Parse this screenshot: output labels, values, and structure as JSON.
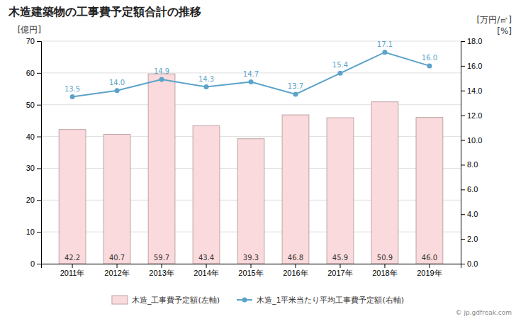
{
  "chart_data": {
    "type": "bar",
    "title": "木造建築物の工事費予定額合計の推移",
    "categories": [
      "2011年",
      "2012年",
      "2013年",
      "2014年",
      "2015年",
      "2016年",
      "2017年",
      "2018年",
      "2019年"
    ],
    "series": [
      {
        "name": "木造_工事費予定額(左軸)",
        "type": "bar",
        "color": "#FADADC",
        "values": [
          42.2,
          40.7,
          59.7,
          43.4,
          39.3,
          46.8,
          45.9,
          50.9,
          46.0
        ],
        "value_labels": [
          "42.2",
          "40.7",
          "59.7",
          "43.4",
          "39.3",
          "46.8",
          "45.9",
          "50.9",
          "46.0"
        ]
      },
      {
        "name": "木造_1平米当たり平均工事費予定額(右軸)",
        "type": "line",
        "color": "#5BA3C9",
        "marker": "circle",
        "axis": "y2",
        "values": [
          13.5,
          14.0,
          14.9,
          14.3,
          14.7,
          13.7,
          15.4,
          17.1,
          16.0
        ],
        "value_labels": [
          "13.5",
          "14.0",
          "14.9",
          "14.3",
          "14.7",
          "13.7",
          "15.4",
          "17.1",
          "16.0"
        ]
      }
    ],
    "ylabel": "[億円]",
    "y2label": "[万円/㎡]",
    "annotations": [
      "[%]",
      "© jp.gdfreak.com"
    ],
    "ylim": [
      0,
      70
    ],
    "yticks": [
      0,
      10,
      20,
      30,
      40,
      50,
      60,
      70
    ],
    "y2lim": [
      0.0,
      18.0
    ],
    "y2ticks": [
      {
        "value": 0.0,
        "label": "0.0"
      },
      {
        "value": 2.0,
        "label": "2.0"
      },
      {
        "value": 4.0,
        "label": "4.0"
      },
      {
        "value": 6.0,
        "label": "6.0"
      },
      {
        "value": 8.0,
        "label": "8.0"
      },
      {
        "value": 10.0,
        "label": "10.0"
      },
      {
        "value": 12.0,
        "label": "12.0"
      },
      {
        "value": 14.0,
        "label": "14.0"
      },
      {
        "value": 16.0,
        "label": "16.0"
      },
      {
        "value": 18.0,
        "label": "18.0"
      }
    ],
    "grid": true,
    "legend": "bottom",
    "data_labels": true
  }
}
